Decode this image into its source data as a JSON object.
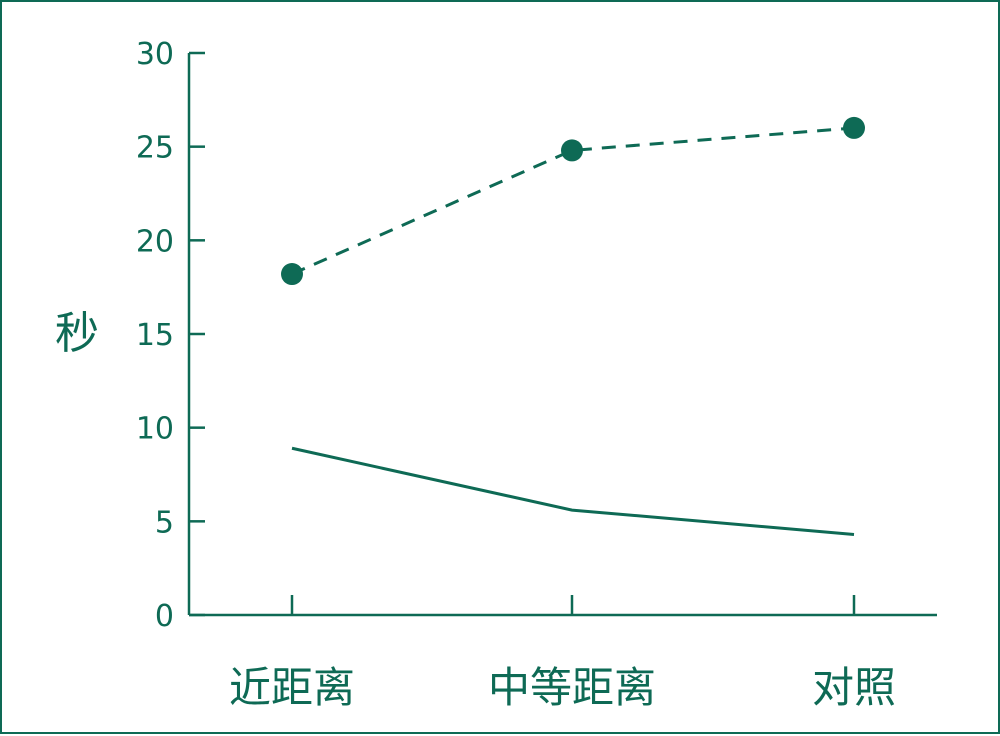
{
  "chart_data": {
    "type": "line",
    "title": "",
    "xlabel": "",
    "ylabel": "秒",
    "categories": [
      "近距离",
      "中等距离",
      "对照"
    ],
    "ylim": [
      0,
      30
    ],
    "yticks": [
      0,
      5,
      10,
      15,
      20,
      25,
      30
    ],
    "grid": false,
    "legend": "none",
    "series": [
      {
        "style": "dashed-with-markers",
        "color": "#0e6a55",
        "values": [
          18.2,
          24.8,
          26.0
        ]
      },
      {
        "style": "solid",
        "color": "#0e6a55",
        "values": [
          8.9,
          5.6,
          4.3
        ]
      }
    ]
  }
}
